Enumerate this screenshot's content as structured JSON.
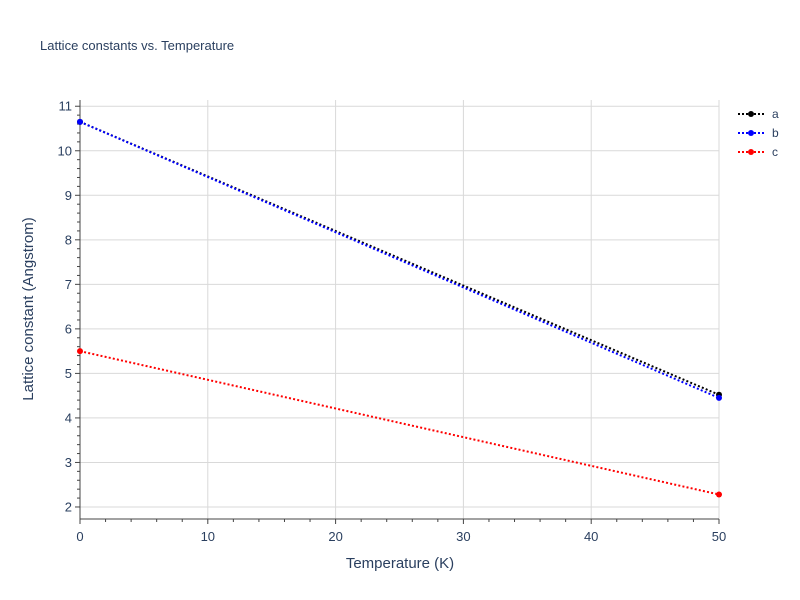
{
  "chart_data": {
    "type": "line",
    "title": "Lattice constants vs. Temperature",
    "xlabel": "Temperature (K)",
    "ylabel": "Lattice constant (Angstrom)",
    "xlim": [
      0,
      50
    ],
    "ylim": [
      1.73,
      11.14
    ],
    "xticks": [
      0,
      10,
      20,
      30,
      40,
      50
    ],
    "yticks": [
      2,
      3,
      4,
      5,
      6,
      7,
      8,
      9,
      10,
      11
    ],
    "grid": true,
    "legend_position": "top-right",
    "series": [
      {
        "name": "a",
        "x": [
          0,
          50
        ],
        "y": [
          10.65,
          4.52
        ],
        "color": "#000000"
      },
      {
        "name": "b",
        "x": [
          0,
          50
        ],
        "y": [
          10.65,
          4.45
        ],
        "color": "#0000ff"
      },
      {
        "name": "c",
        "x": [
          0,
          50
        ],
        "y": [
          5.5,
          2.28
        ],
        "color": "#ff0000"
      }
    ]
  }
}
